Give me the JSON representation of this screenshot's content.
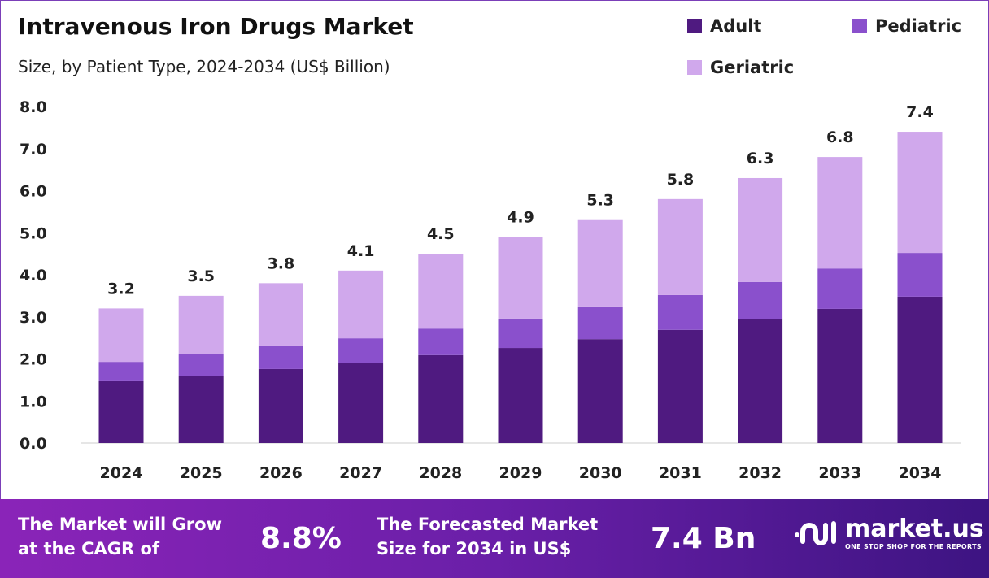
{
  "chart_data": {
    "type": "bar",
    "stacked": true,
    "title": "Intravenous Iron Drugs Market",
    "subtitle": "Size, by Patient Type, 2024-2034 (US$ Billion)",
    "categories": [
      "2024",
      "2025",
      "2026",
      "2027",
      "2028",
      "2029",
      "2030",
      "2031",
      "2032",
      "2033",
      "2034"
    ],
    "series": [
      {
        "name": "Adult",
        "color": "#4f1a80",
        "values": [
          1.47,
          1.6,
          1.76,
          1.91,
          2.09,
          2.26,
          2.47,
          2.69,
          2.94,
          3.19,
          3.48
        ]
      },
      {
        "name": "Pediatric",
        "color": "#8a50cc",
        "values": [
          0.46,
          0.51,
          0.54,
          0.58,
          0.63,
          0.7,
          0.76,
          0.83,
          0.89,
          0.96,
          1.04
        ]
      },
      {
        "name": "Geriatric",
        "color": "#d0a8ec",
        "values": [
          1.27,
          1.39,
          1.5,
          1.61,
          1.78,
          1.94,
          2.07,
          2.28,
          2.47,
          2.65,
          2.88
        ]
      }
    ],
    "totals": [
      "3.2",
      "3.5",
      "3.8",
      "4.1",
      "4.5",
      "4.9",
      "5.3",
      "5.8",
      "6.3",
      "6.8",
      "7.4"
    ],
    "y_ticks": [
      "0.0",
      "1.0",
      "2.0",
      "3.0",
      "4.0",
      "5.0",
      "6.0",
      "7.0",
      "8.0"
    ],
    "ylim": [
      0,
      8
    ],
    "grid": false,
    "legend_position": "top-right"
  },
  "footer": {
    "cagr_label": "The Market will Grow at the CAGR of",
    "cagr_value": "8.8%",
    "forecast_label": "The Forecasted Market Size for 2034 in US$",
    "forecast_value": "7.4 Bn",
    "brand": "market.us",
    "tagline": "ONE STOP SHOP FOR THE REPORTS"
  }
}
